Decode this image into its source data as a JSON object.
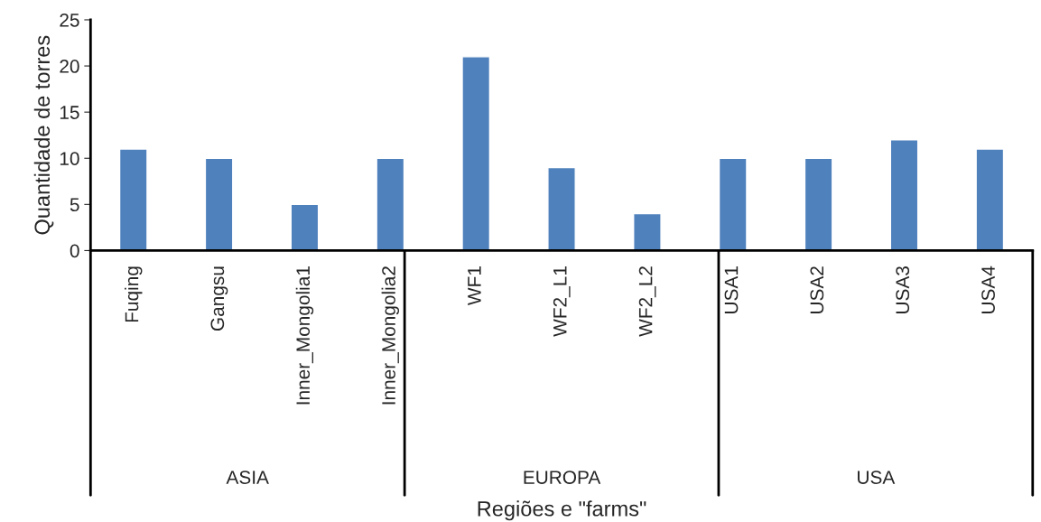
{
  "chart_data": {
    "type": "bar",
    "xlabel": "Regiões e \"farms\"",
    "ylabel": "Quantidade de torres",
    "categories": [
      "Fuqing",
      "Gangsu",
      "Inner_Mongolia1",
      "Inner_Mongolia2",
      "WF1",
      "WF2_L1",
      "WF2_L2",
      "USA1",
      "USA2",
      "USA3",
      "USA4"
    ],
    "values": [
      11,
      10,
      5,
      10,
      21,
      9,
      4,
      10,
      10,
      12,
      11
    ],
    "color": "#4f81bd",
    "ylim": [
      0,
      25
    ],
    "yticks": [
      0,
      5,
      10,
      15,
      20,
      25
    ],
    "grid": false,
    "legend": false,
    "annotations": [
      "ASIA",
      "EUROPA",
      "USA"
    ]
  }
}
